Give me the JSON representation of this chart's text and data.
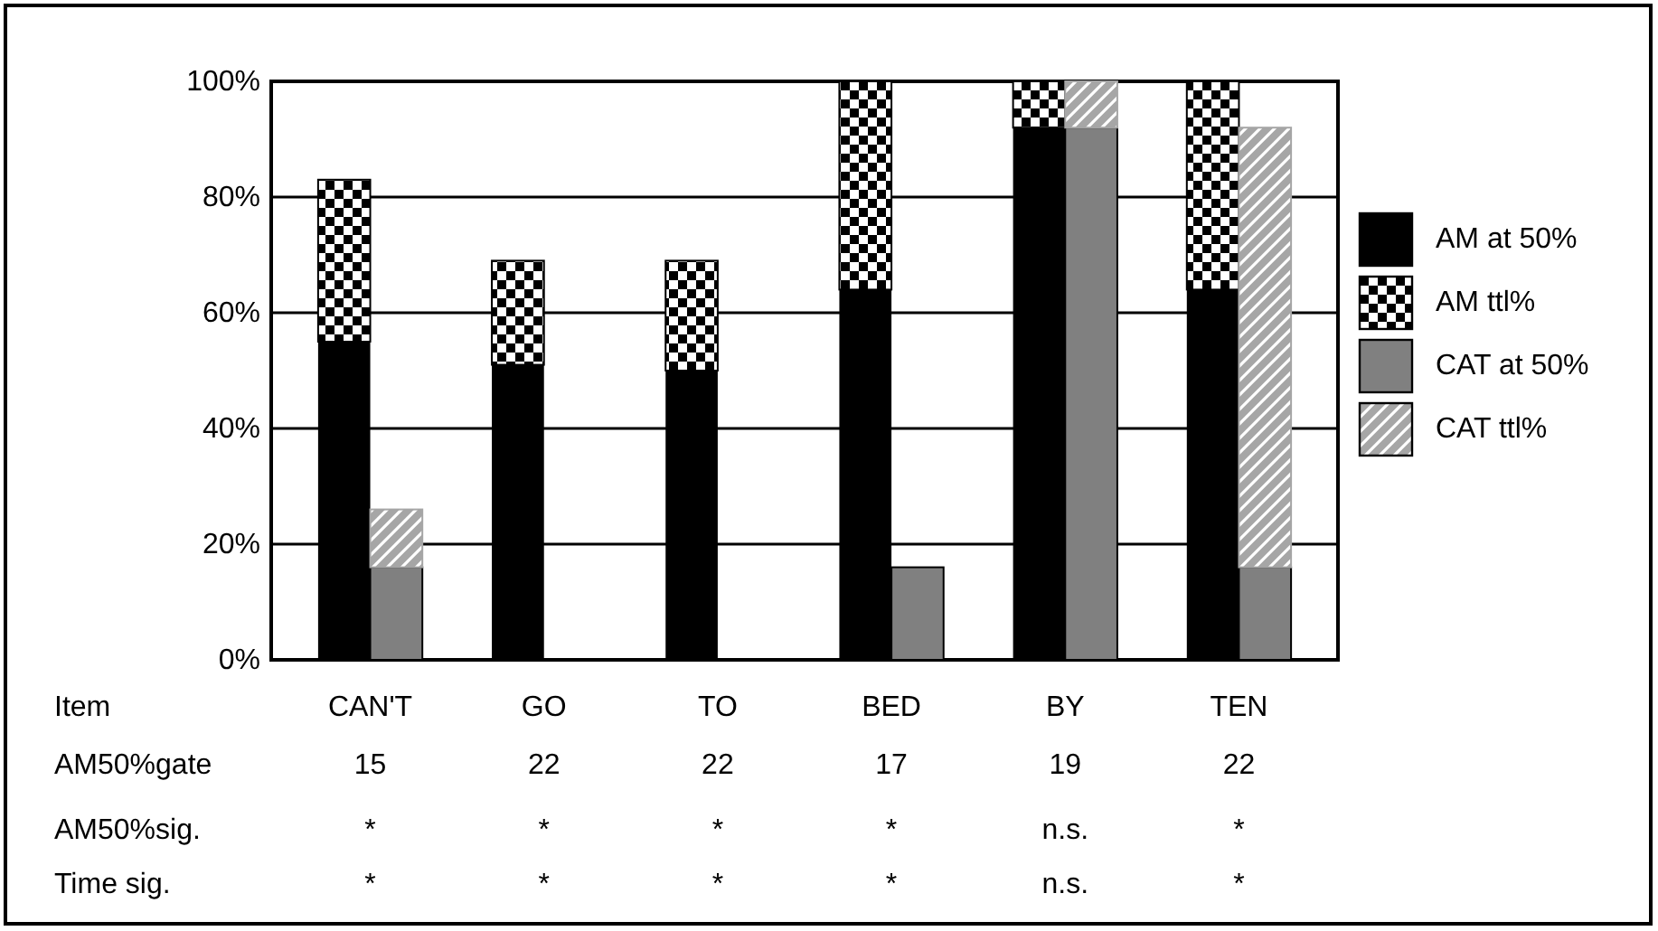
{
  "chart_data": {
    "type": "bar",
    "stacked": true,
    "categories": [
      null,
      null,
      null,
      null,
      null,
      null,
      null,
      null,
      null,
      null,
      null,
      null
    ],
    "series": [
      {
        "name": "AM at 50%",
        "color": "#000000",
        "values": [
          55,
          null,
          51,
          null,
          50,
          null,
          64,
          null,
          92,
          null,
          64,
          null
        ]
      },
      {
        "name": "AM ttl%",
        "color": "#000000",
        "values": [
          28,
          null,
          18,
          null,
          19,
          null,
          36,
          null,
          8,
          null,
          36,
          null
        ]
      },
      {
        "name": "CAT at 50%",
        "color": "#808080",
        "values": [
          null,
          16,
          null,
          null,
          null,
          null,
          null,
          16,
          null,
          92,
          null,
          16
        ]
      },
      {
        "name": "CAT ttl%",
        "color": "#a6a6a6",
        "values": [
          null,
          10,
          null,
          null,
          null,
          null,
          null,
          null,
          null,
          8,
          null,
          76
        ]
      }
    ],
    "ylim": [
      0,
      100
    ],
    "yticks": [
      {
        "value": 0,
        "label": "0%"
      },
      {
        "value": 20,
        "label": "20%"
      },
      {
        "value": 40,
        "label": "40%"
      },
      {
        "value": 60,
        "label": "60%"
      },
      {
        "value": 80,
        "label": "80%"
      },
      {
        "value": 100,
        "label": "100%"
      }
    ],
    "grid": "y",
    "legend": "right",
    "annotations": [
      "Item",
      "CAN'T",
      "GO",
      "TO",
      "BED",
      "BY",
      "TEN",
      "AM50%gate",
      "15",
      "22",
      "22",
      "17",
      "19",
      "22",
      "AM50%sig.",
      "*",
      "*",
      "*",
      "*",
      "n.s.",
      "*",
      "Time sig.",
      "*",
      "*",
      "*",
      "*",
      "n.s.",
      "*"
    ]
  }
}
